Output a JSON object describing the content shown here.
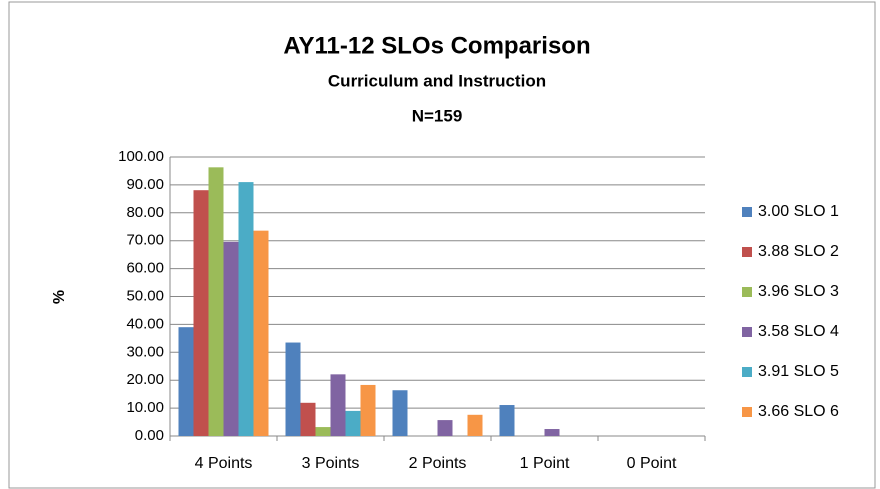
{
  "chart_data": {
    "type": "bar",
    "title": "AY11-12 SLOs Comparison",
    "subtitle": "Curriculum and Instruction",
    "note": "N=159",
    "y_label": "%",
    "categories": [
      "4 Points",
      "3 Points",
      "2 Points",
      "1 Point",
      "0 Point"
    ],
    "series": [
      {
        "name": "3.00 SLO 1",
        "color": "#4f81bd",
        "values": [
          39.0,
          33.5,
          16.4,
          11.1,
          0
        ]
      },
      {
        "name": "3.88 SLO 2",
        "color": "#c0504d",
        "values": [
          88.1,
          11.9,
          0,
          0,
          0
        ]
      },
      {
        "name": "3.96 SLO 3",
        "color": "#9bbb59",
        "values": [
          96.3,
          3.2,
          0,
          0,
          0
        ]
      },
      {
        "name": "3.58 SLO 4",
        "color": "#8064a2",
        "values": [
          69.6,
          22.1,
          5.7,
          2.5,
          0
        ]
      },
      {
        "name": "3.91 SLO 5",
        "color": "#4bacc6",
        "values": [
          91.0,
          9.0,
          0,
          0,
          0
        ]
      },
      {
        "name": "3.66 SLO 6",
        "color": "#f79646",
        "values": [
          73.6,
          18.3,
          7.6,
          0,
          0
        ]
      }
    ],
    "ylim": [
      0,
      100
    ],
    "yticks": [
      {
        "value": 0,
        "label": "0.00"
      },
      {
        "value": 10,
        "label": "10.00"
      },
      {
        "value": 20,
        "label": "20.00"
      },
      {
        "value": 30,
        "label": "30.00"
      },
      {
        "value": 40,
        "label": "40.00"
      },
      {
        "value": 50,
        "label": "50.00"
      },
      {
        "value": 60,
        "label": "60.00"
      },
      {
        "value": 70,
        "label": "70.00"
      },
      {
        "value": 80,
        "label": "80.00"
      },
      {
        "value": 90,
        "label": "90.00"
      },
      {
        "value": 100,
        "label": "100.00"
      }
    ],
    "grid": true,
    "legend": "right"
  }
}
